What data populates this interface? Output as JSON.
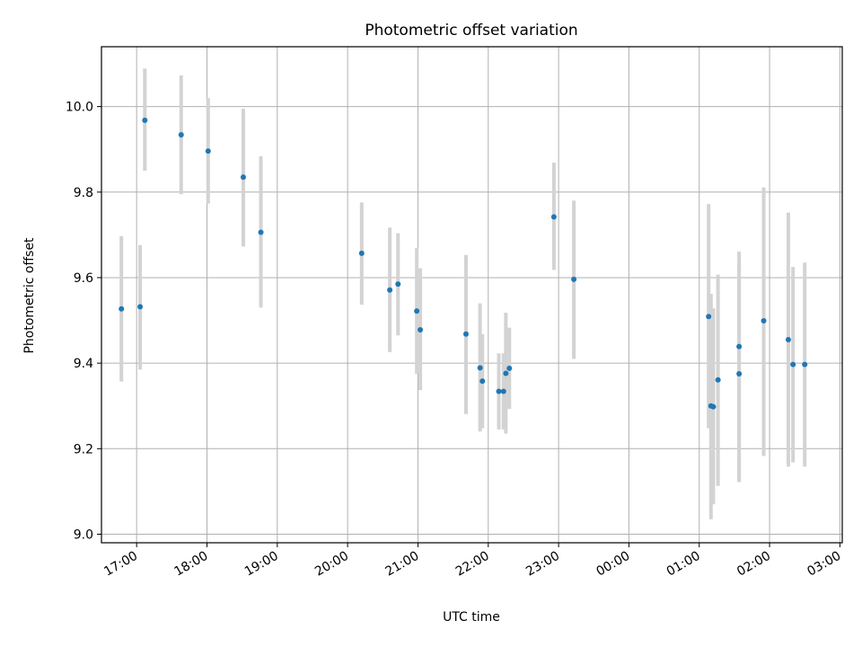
{
  "chart_data": {
    "type": "scatter",
    "title": "Photometric offset variation",
    "xlabel": "UTC time",
    "ylabel": "Photometric offset",
    "x_ticks": [
      "17:00",
      "18:00",
      "19:00",
      "20:00",
      "21:00",
      "22:00",
      "23:00",
      "00:00",
      "01:00",
      "02:00",
      "03:00"
    ],
    "y_ticks": [
      "9.0",
      "9.2",
      "9.4",
      "9.6",
      "9.8",
      "10.0"
    ],
    "xlim": [
      "16:30",
      "03:02"
    ],
    "ylim": [
      8.98,
      10.14
    ],
    "grid": true,
    "colors": {
      "point": "#1f77b4",
      "error_bar": "#d3d3d3",
      "grid": "#b0b0b0"
    },
    "series": [
      {
        "x": [
          "16:47",
          "17:03",
          "17:07",
          "17:38",
          "18:01",
          "18:31",
          "18:46",
          "20:12",
          "20:36",
          "20:43",
          "20:59",
          "21:02",
          "21:41",
          "21:53",
          "21:55",
          "22:09",
          "22:13",
          "22:15",
          "22:18",
          "22:56",
          "23:13",
          "01:08",
          "01:10",
          "01:12",
          "01:16",
          "01:34",
          "01:34",
          "01:55",
          "02:16",
          "02:20",
          "02:30"
        ],
        "y": [
          9.527,
          9.532,
          9.968,
          9.934,
          9.896,
          9.835,
          9.706,
          9.657,
          9.571,
          9.585,
          9.522,
          9.478,
          9.468,
          9.389,
          9.358,
          9.334,
          9.334,
          9.376,
          9.388,
          9.742,
          9.596,
          9.509,
          9.3,
          9.298,
          9.361,
          9.439,
          9.375,
          9.499,
          9.455,
          9.397,
          9.397
        ],
        "y_low": [
          9.357,
          9.385,
          9.85,
          9.795,
          9.773,
          9.673,
          9.53,
          9.537,
          9.426,
          9.465,
          9.375,
          9.337,
          9.281,
          9.24,
          9.248,
          9.245,
          9.245,
          9.235,
          9.293,
          9.618,
          9.41,
          9.248,
          9.035,
          9.07,
          9.113,
          9.122,
          9.122,
          9.183,
          9.158,
          9.168,
          9.158
        ],
        "y_high": [
          9.697,
          9.676,
          10.089,
          10.073,
          10.02,
          9.995,
          9.884,
          9.776,
          9.717,
          9.704,
          9.669,
          9.622,
          9.653,
          9.54,
          9.468,
          9.423,
          9.423,
          9.518,
          9.483,
          9.869,
          9.78,
          9.772,
          9.562,
          9.528,
          9.607,
          9.661,
          9.63,
          9.811,
          9.752,
          9.625,
          9.635
        ]
      }
    ]
  }
}
